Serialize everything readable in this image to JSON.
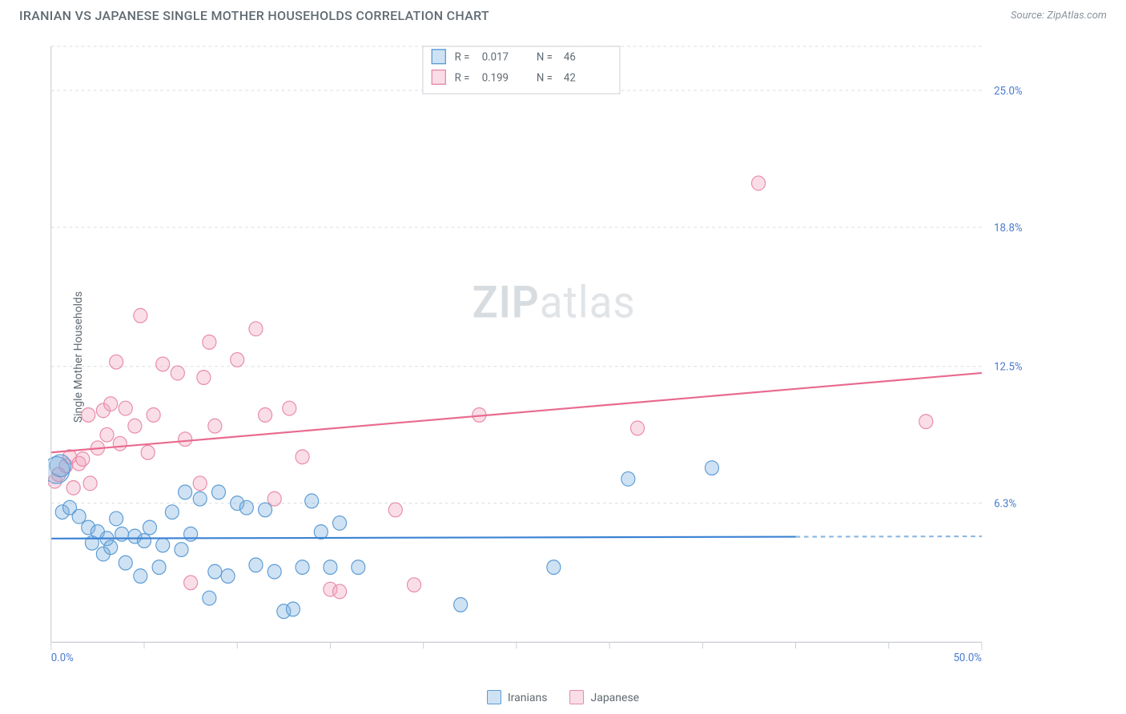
{
  "header": {
    "title": "IRANIAN VS JAPANESE SINGLE MOTHER HOUSEHOLDS CORRELATION CHART",
    "source": "Source: ZipAtlas.com"
  },
  "ylabel": "Single Mother Households",
  "watermark": {
    "bold": "ZIP",
    "light": "atlas"
  },
  "chart": {
    "type": "scatter",
    "xlim": [
      0,
      50
    ],
    "ylim": [
      0,
      27
    ],
    "x_axis_labels": [
      {
        "v": 0,
        "label": "0.0%"
      },
      {
        "v": 50,
        "label": "50.0%"
      }
    ],
    "x_ticks_minor": [
      5,
      10,
      15,
      20,
      25,
      30,
      35,
      40,
      45
    ],
    "y_gridlines": [
      {
        "v": 6.3,
        "label": "6.3%"
      },
      {
        "v": 12.5,
        "label": "12.5%"
      },
      {
        "v": 18.8,
        "label": "18.8%"
      },
      {
        "v": 25.0,
        "label": "25.0%"
      }
    ],
    "background_color": "#ffffff",
    "grid_color": "#d9dde2",
    "axis_color": "#c9ced4",
    "series": {
      "iranians": {
        "label": "Iranians",
        "color_fill": "rgba(117,171,222,0.35)",
        "color_stroke": "#5a9bd5",
        "marker_radius": 9,
        "R": "0.017",
        "N": "46",
        "trend": {
          "y_at_x0": 4.7,
          "y_at_x50": 4.8,
          "solid_until_x": 40
        },
        "points": [
          {
            "x": 0.3,
            "y": 7.8,
            "r": 17
          },
          {
            "x": 0.5,
            "y": 8.0,
            "r": 14
          },
          {
            "x": 0.6,
            "y": 5.9
          },
          {
            "x": 1.5,
            "y": 5.7
          },
          {
            "x": 1.0,
            "y": 6.1
          },
          {
            "x": 2.0,
            "y": 5.2
          },
          {
            "x": 2.2,
            "y": 4.5
          },
          {
            "x": 2.5,
            "y": 5.0
          },
          {
            "x": 2.8,
            "y": 4.0
          },
          {
            "x": 3.0,
            "y": 4.7
          },
          {
            "x": 3.2,
            "y": 4.3
          },
          {
            "x": 3.5,
            "y": 5.6
          },
          {
            "x": 3.8,
            "y": 4.9
          },
          {
            "x": 4.0,
            "y": 3.6
          },
          {
            "x": 4.5,
            "y": 4.8
          },
          {
            "x": 4.8,
            "y": 3.0
          },
          {
            "x": 5.0,
            "y": 4.6
          },
          {
            "x": 5.3,
            "y": 5.2
          },
          {
            "x": 5.8,
            "y": 3.4
          },
          {
            "x": 6.0,
            "y": 4.4
          },
          {
            "x": 6.5,
            "y": 5.9
          },
          {
            "x": 7.0,
            "y": 4.2
          },
          {
            "x": 7.2,
            "y": 6.8
          },
          {
            "x": 7.5,
            "y": 4.9
          },
          {
            "x": 8.0,
            "y": 6.5
          },
          {
            "x": 8.5,
            "y": 2.0
          },
          {
            "x": 8.8,
            "y": 3.2
          },
          {
            "x": 9.0,
            "y": 6.8
          },
          {
            "x": 9.5,
            "y": 3.0
          },
          {
            "x": 10.0,
            "y": 6.3
          },
          {
            "x": 10.5,
            "y": 6.1
          },
          {
            "x": 11.0,
            "y": 3.5
          },
          {
            "x": 11.5,
            "y": 6.0
          },
          {
            "x": 12.0,
            "y": 3.2
          },
          {
            "x": 12.5,
            "y": 1.4
          },
          {
            "x": 13.0,
            "y": 1.5
          },
          {
            "x": 13.5,
            "y": 3.4
          },
          {
            "x": 14.0,
            "y": 6.4
          },
          {
            "x": 14.5,
            "y": 5.0
          },
          {
            "x": 15.0,
            "y": 3.4
          },
          {
            "x": 15.5,
            "y": 5.4
          },
          {
            "x": 16.5,
            "y": 3.4
          },
          {
            "x": 22.0,
            "y": 1.7
          },
          {
            "x": 27.0,
            "y": 3.4
          },
          {
            "x": 31.0,
            "y": 7.4
          },
          {
            "x": 35.5,
            "y": 7.9
          }
        ]
      },
      "japanese": {
        "label": "Japanese",
        "color_fill": "rgba(240,160,185,0.35)",
        "color_stroke": "#e88aa7",
        "marker_radius": 9,
        "R": "0.199",
        "N": "42",
        "trend": {
          "y_at_x0": 8.6,
          "y_at_x50": 12.2,
          "solid_until_x": 50
        },
        "points": [
          {
            "x": 0.2,
            "y": 7.3
          },
          {
            "x": 0.4,
            "y": 7.6
          },
          {
            "x": 0.8,
            "y": 8.0
          },
          {
            "x": 1.0,
            "y": 8.4
          },
          {
            "x": 1.2,
            "y": 7.0
          },
          {
            "x": 1.5,
            "y": 8.1
          },
          {
            "x": 1.7,
            "y": 8.3
          },
          {
            "x": 2.0,
            "y": 10.3
          },
          {
            "x": 2.1,
            "y": 7.2
          },
          {
            "x": 2.5,
            "y": 8.8
          },
          {
            "x": 2.8,
            "y": 10.5
          },
          {
            "x": 3.0,
            "y": 9.4
          },
          {
            "x": 3.2,
            "y": 10.8
          },
          {
            "x": 3.5,
            "y": 12.7
          },
          {
            "x": 3.7,
            "y": 9.0
          },
          {
            "x": 4.0,
            "y": 10.6
          },
          {
            "x": 4.5,
            "y": 9.8
          },
          {
            "x": 4.8,
            "y": 14.8
          },
          {
            "x": 5.2,
            "y": 8.6
          },
          {
            "x": 5.5,
            "y": 10.3
          },
          {
            "x": 6.0,
            "y": 12.6
          },
          {
            "x": 6.8,
            "y": 12.2
          },
          {
            "x": 7.2,
            "y": 9.2
          },
          {
            "x": 7.5,
            "y": 2.7
          },
          {
            "x": 8.0,
            "y": 7.2
          },
          {
            "x": 8.2,
            "y": 12.0
          },
          {
            "x": 8.5,
            "y": 13.6
          },
          {
            "x": 8.8,
            "y": 9.8
          },
          {
            "x": 10.0,
            "y": 12.8
          },
          {
            "x": 11.0,
            "y": 14.2
          },
          {
            "x": 11.5,
            "y": 10.3
          },
          {
            "x": 12.0,
            "y": 6.5
          },
          {
            "x": 12.8,
            "y": 10.6
          },
          {
            "x": 13.5,
            "y": 8.4
          },
          {
            "x": 15.0,
            "y": 2.4
          },
          {
            "x": 15.5,
            "y": 2.3
          },
          {
            "x": 18.5,
            "y": 6.0
          },
          {
            "x": 19.5,
            "y": 2.6
          },
          {
            "x": 23.0,
            "y": 10.3
          },
          {
            "x": 31.5,
            "y": 9.7
          },
          {
            "x": 38.0,
            "y": 20.8
          },
          {
            "x": 47.0,
            "y": 10.0
          }
        ]
      }
    },
    "legend_top": {
      "border_color": "#c9ced4",
      "rows": [
        {
          "swatch": "b",
          "r_label": "R =",
          "r_val_key": "chart.series.iranians.R",
          "n_label": "N =",
          "n_val_key": "chart.series.iranians.N"
        },
        {
          "swatch": "p",
          "r_label": "R =",
          "r_val_key": "chart.series.japanese.R",
          "n_label": "N =",
          "n_val_key": "chart.series.japanese.N"
        }
      ]
    }
  }
}
